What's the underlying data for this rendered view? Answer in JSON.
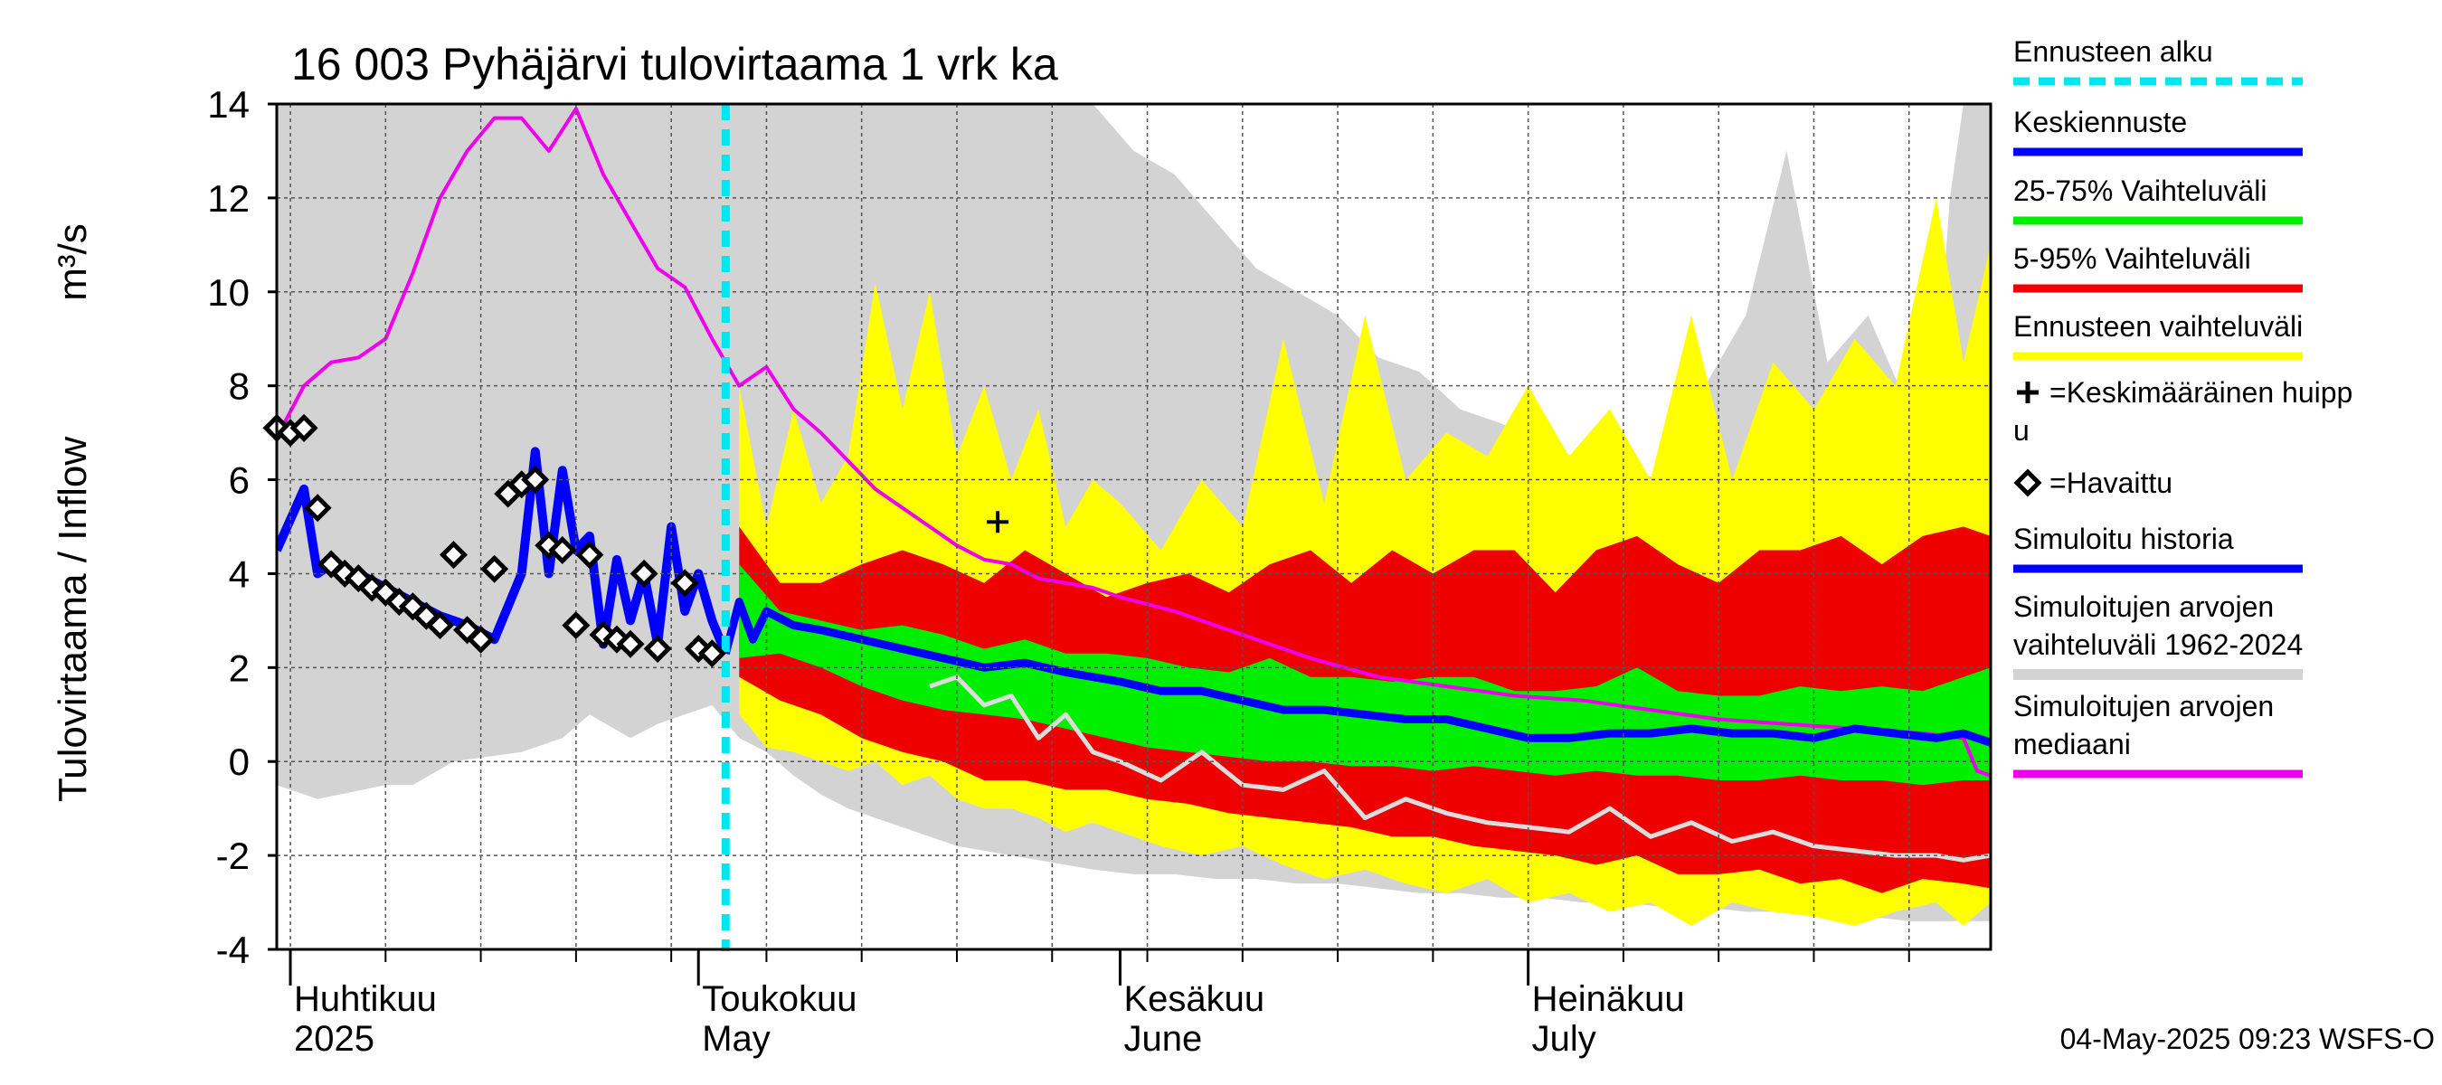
{
  "chart_data": {
    "type": "area",
    "title": "16 003 Pyhäjärvi tulovirtaama 1 vrk ka",
    "ylabel": "Tulovirtaama / Inflow",
    "yunit": "m³/s",
    "ylim": [
      -4,
      14
    ],
    "yticks": [
      -4,
      -2,
      0,
      2,
      4,
      6,
      8,
      10,
      12,
      14
    ],
    "xlim": [
      "2025-03-31",
      "2025-08-04"
    ],
    "grid": true,
    "legend_position": "right",
    "footer": "04-May-2025 09:23 WSFS-O",
    "month_labels": [
      {
        "fi": "Huhtikuu",
        "en": "2025",
        "date": "2025-04-01"
      },
      {
        "fi": "Toukokuu",
        "en": "May",
        "date": "2025-05-01"
      },
      {
        "fi": "Kesäkuu",
        "en": "June",
        "date": "2025-06-01"
      },
      {
        "fi": "Heinäkuu",
        "en": "July",
        "date": "2025-07-01"
      }
    ],
    "forecast_start": "2025-05-03",
    "legend": [
      {
        "label": "Ennusteen alku",
        "color": "#00e5ee",
        "style": "dashed"
      },
      {
        "label": "Keskiennuste",
        "color": "#0000ff",
        "style": "line"
      },
      {
        "label": "25-75% Vaihteluväli",
        "color": "#00ee00",
        "style": "line"
      },
      {
        "label": "5-95% Vaihteluväli",
        "color": "#ee0000",
        "style": "line"
      },
      {
        "label": "Ennusteen vaihteluväli",
        "color": "#ffff00",
        "style": "line"
      },
      {
        "label": "=Keskimääräinen huipp\nu",
        "color": "#000000",
        "style": "plus"
      },
      {
        "label": "=Havaittu",
        "color": "#000000",
        "style": "diamond"
      },
      {
        "label": "Simuloitu historia",
        "color": "#0000ff",
        "style": "line"
      },
      {
        "label": "Simuloitujen arvojen\nvaihteluväli 1962-2024",
        "color": "#d3d3d3",
        "style": "line"
      },
      {
        "label": "Simuloitujen arvojen\nmediaani",
        "color": "#ee00ee",
        "style": "line"
      }
    ],
    "colors": {
      "history_range": "#d3d3d3",
      "forecast_range": "#ffff00",
      "p5_95": "#ee0000",
      "p25_75": "#00ee00",
      "mean_forecast": "#0000ff",
      "simulated_history": "#0000ff",
      "historical_median": "#ee00ee",
      "forecast_start": "#00e5ee",
      "low_sim": "#dddddd"
    },
    "series": {
      "history_range": {
        "x": [
          "2025-03-31",
          "2025-04-03",
          "2025-04-08",
          "2025-04-10",
          "2025-04-13",
          "2025-04-18",
          "2025-04-21",
          "2025-04-23",
          "2025-04-26",
          "2025-04-28",
          "2025-04-30",
          "2025-05-02",
          "2025-05-04",
          "2025-05-06",
          "2025-05-08",
          "2025-05-10",
          "2025-05-12",
          "2025-05-14",
          "2025-05-16",
          "2025-05-18",
          "2025-05-20",
          "2025-05-22",
          "2025-05-24",
          "2025-05-26",
          "2025-05-28",
          "2025-05-30",
          "2025-06-02",
          "2025-06-05",
          "2025-06-08",
          "2025-06-11",
          "2025-06-14",
          "2025-06-17",
          "2025-06-20",
          "2025-06-23",
          "2025-06-26",
          "2025-06-29",
          "2025-07-02",
          "2025-07-05",
          "2025-07-08",
          "2025-07-11",
          "2025-07-14",
          "2025-07-17",
          "2025-07-20",
          "2025-07-23",
          "2025-07-26",
          "2025-07-29",
          "2025-07-31",
          "2025-08-01",
          "2025-08-02",
          "2025-08-03",
          "2025-08-04"
        ],
        "upper": [
          14,
          14,
          14,
          14,
          14,
          14,
          14,
          14,
          14,
          14,
          14,
          14,
          14,
          14,
          14,
          14,
          14,
          14,
          14,
          14,
          14,
          14,
          14,
          14,
          14,
          14,
          13,
          12.5,
          11.5,
          10.5,
          10,
          9.5,
          8.6,
          8.3,
          7.5,
          7.2,
          6.8,
          6.4,
          6.2,
          6.0,
          8.0,
          9.5,
          13.0,
          8.5,
          9.5,
          7.5,
          8.0,
          12.0,
          14.0,
          14.0,
          14.0
        ],
        "lower": [
          -0.5,
          -0.8,
          -0.5,
          -0.5,
          0.0,
          0.2,
          0.5,
          1.0,
          0.5,
          0.8,
          1.0,
          1.2,
          0.5,
          0.2,
          -0.3,
          -0.7,
          -1.0,
          -1.2,
          -1.4,
          -1.6,
          -1.8,
          -1.9,
          -2.0,
          -2.1,
          -2.2,
          -2.3,
          -2.4,
          -2.4,
          -2.5,
          -2.5,
          -2.6,
          -2.6,
          -2.7,
          -2.8,
          -2.8,
          -2.9,
          -2.9,
          -3.0,
          -3.0,
          -3.1,
          -3.1,
          -3.2,
          -3.2,
          -3.3,
          -3.3,
          -3.4,
          -3.4,
          -3.4,
          -3.4,
          -3.4,
          -3.4
        ]
      },
      "forecast_range": {
        "x": [
          "2025-05-04",
          "2025-05-06",
          "2025-05-08",
          "2025-05-10",
          "2025-05-12",
          "2025-05-14",
          "2025-05-16",
          "2025-05-18",
          "2025-05-20",
          "2025-05-22",
          "2025-05-24",
          "2025-05-26",
          "2025-05-28",
          "2025-05-30",
          "2025-06-01",
          "2025-06-04",
          "2025-06-07",
          "2025-06-10",
          "2025-06-13",
          "2025-06-16",
          "2025-06-19",
          "2025-06-22",
          "2025-06-25",
          "2025-06-28",
          "2025-07-01",
          "2025-07-04",
          "2025-07-07",
          "2025-07-10",
          "2025-07-13",
          "2025-07-16",
          "2025-07-19",
          "2025-07-22",
          "2025-07-25",
          "2025-07-28",
          "2025-07-31",
          "2025-08-02",
          "2025-08-04"
        ],
        "upper": [
          8.0,
          5.0,
          7.5,
          5.5,
          6.5,
          10.2,
          7.5,
          10.0,
          6.5,
          8.0,
          6.0,
          7.5,
          5.0,
          6.0,
          5.5,
          4.5,
          6.0,
          5.0,
          9.0,
          5.5,
          9.5,
          6.0,
          7.0,
          6.5,
          8.0,
          6.5,
          7.5,
          6.0,
          9.5,
          6.0,
          8.5,
          7.5,
          9.0,
          8.0,
          12.0,
          8.5,
          11.0
        ],
        "lower": [
          1.0,
          0.3,
          0.2,
          0.0,
          -0.2,
          0.0,
          -0.5,
          -0.3,
          -0.8,
          -1.0,
          -1.0,
          -1.2,
          -1.5,
          -1.3,
          -1.5,
          -1.8,
          -2.0,
          -1.8,
          -2.2,
          -2.5,
          -2.3,
          -2.6,
          -2.8,
          -2.5,
          -3.0,
          -2.8,
          -3.2,
          -3.0,
          -3.5,
          -3.0,
          -3.2,
          -3.3,
          -3.5,
          -3.2,
          -3.0,
          -3.5,
          -3.0
        ]
      },
      "p5_95": {
        "x": [
          "2025-05-04",
          "2025-05-07",
          "2025-05-10",
          "2025-05-13",
          "2025-05-16",
          "2025-05-19",
          "2025-05-22",
          "2025-05-25",
          "2025-05-28",
          "2025-05-31",
          "2025-06-03",
          "2025-06-06",
          "2025-06-09",
          "2025-06-12",
          "2025-06-15",
          "2025-06-18",
          "2025-06-21",
          "2025-06-24",
          "2025-06-27",
          "2025-06-30",
          "2025-07-03",
          "2025-07-06",
          "2025-07-09",
          "2025-07-12",
          "2025-07-15",
          "2025-07-18",
          "2025-07-21",
          "2025-07-24",
          "2025-07-27",
          "2025-07-30",
          "2025-08-02",
          "2025-08-04"
        ],
        "upper": [
          5.0,
          3.8,
          3.8,
          4.2,
          4.5,
          4.2,
          3.8,
          4.5,
          4.0,
          3.5,
          3.8,
          4.0,
          3.6,
          4.2,
          4.5,
          3.8,
          4.5,
          4.0,
          4.5,
          4.5,
          3.6,
          4.5,
          4.8,
          4.2,
          3.8,
          4.5,
          4.5,
          4.8,
          4.2,
          4.8,
          5.0,
          4.8
        ],
        "lower": [
          1.8,
          1.3,
          1.0,
          0.5,
          0.2,
          0.0,
          -0.4,
          -0.4,
          -0.6,
          -0.6,
          -0.8,
          -0.9,
          -1.1,
          -1.2,
          -1.3,
          -1.4,
          -1.6,
          -1.6,
          -1.8,
          -1.9,
          -2.0,
          -2.2,
          -2.0,
          -2.4,
          -2.4,
          -2.3,
          -2.6,
          -2.5,
          -2.8,
          -2.5,
          -2.6,
          -2.7
        ]
      },
      "p25_75": {
        "x": [
          "2025-05-04",
          "2025-05-07",
          "2025-05-10",
          "2025-05-13",
          "2025-05-16",
          "2025-05-19",
          "2025-05-22",
          "2025-05-25",
          "2025-05-28",
          "2025-05-31",
          "2025-06-03",
          "2025-06-06",
          "2025-06-09",
          "2025-06-12",
          "2025-06-15",
          "2025-06-18",
          "2025-06-21",
          "2025-06-24",
          "2025-06-27",
          "2025-06-30",
          "2025-07-03",
          "2025-07-06",
          "2025-07-09",
          "2025-07-12",
          "2025-07-15",
          "2025-07-18",
          "2025-07-21",
          "2025-07-24",
          "2025-07-27",
          "2025-07-30",
          "2025-08-02",
          "2025-08-04"
        ],
        "upper": [
          4.2,
          3.2,
          3.0,
          2.8,
          2.9,
          2.7,
          2.4,
          2.6,
          2.3,
          2.3,
          2.2,
          2.0,
          1.9,
          2.2,
          1.8,
          1.8,
          1.7,
          1.8,
          1.8,
          1.5,
          1.5,
          1.6,
          2.0,
          1.5,
          1.4,
          1.4,
          1.6,
          1.5,
          1.6,
          1.5,
          1.8,
          2.0
        ],
        "lower": [
          2.2,
          2.3,
          2.0,
          1.6,
          1.3,
          1.1,
          1.0,
          0.9,
          0.7,
          0.5,
          0.3,
          0.2,
          0.1,
          0.0,
          0.0,
          -0.1,
          -0.1,
          -0.2,
          -0.1,
          -0.2,
          -0.3,
          -0.2,
          -0.3,
          -0.3,
          -0.4,
          -0.4,
          -0.3,
          -0.4,
          -0.4,
          -0.5,
          -0.4,
          -0.4
        ]
      },
      "historical_median": {
        "x": [
          "2025-03-31",
          "2025-04-02",
          "2025-04-04",
          "2025-04-06",
          "2025-04-08",
          "2025-04-10",
          "2025-04-12",
          "2025-04-14",
          "2025-04-16",
          "2025-04-18",
          "2025-04-20",
          "2025-04-22",
          "2025-04-24",
          "2025-04-26",
          "2025-04-28",
          "2025-04-30",
          "2025-05-02",
          "2025-05-04",
          "2025-05-06",
          "2025-05-08",
          "2025-05-10",
          "2025-05-12",
          "2025-05-14",
          "2025-05-16",
          "2025-05-18",
          "2025-05-20",
          "2025-05-22",
          "2025-05-24",
          "2025-05-26",
          "2025-05-28",
          "2025-05-30",
          "2025-06-01",
          "2025-06-05",
          "2025-06-10",
          "2025-06-15",
          "2025-06-20",
          "2025-06-25",
          "2025-06-30",
          "2025-07-05",
          "2025-07-10",
          "2025-07-15",
          "2025-07-20",
          "2025-07-25",
          "2025-07-30",
          "2025-08-02",
          "2025-08-03",
          "2025-08-04"
        ],
        "values": [
          6.9,
          8.0,
          8.5,
          8.6,
          9.0,
          10.4,
          12.0,
          13.0,
          13.7,
          13.7,
          13.0,
          13.9,
          12.5,
          11.5,
          10.5,
          10.1,
          9.0,
          8.0,
          8.4,
          7.5,
          7.0,
          6.4,
          5.8,
          5.4,
          5.0,
          4.6,
          4.3,
          4.2,
          3.9,
          3.8,
          3.7,
          3.5,
          3.2,
          2.7,
          2.2,
          1.8,
          1.6,
          1.4,
          1.3,
          1.1,
          0.9,
          0.8,
          0.7,
          0.6,
          0.5,
          -0.2,
          -0.3
        ]
      },
      "simulated_history": {
        "x": [
          "2025-03-31",
          "2025-04-02",
          "2025-04-03",
          "2025-04-04",
          "2025-04-05",
          "2025-04-06",
          "2025-04-08",
          "2025-04-10",
          "2025-04-12",
          "2025-04-14",
          "2025-04-16",
          "2025-04-18",
          "2025-04-19",
          "2025-04-20",
          "2025-04-21",
          "2025-04-22",
          "2025-04-23",
          "2025-04-24",
          "2025-04-25",
          "2025-04-26",
          "2025-04-27",
          "2025-04-28",
          "2025-04-29",
          "2025-04-30",
          "2025-05-01",
          "2025-05-02",
          "2025-05-03"
        ],
        "values": [
          4.5,
          5.8,
          4.0,
          4.2,
          3.9,
          4.0,
          3.7,
          3.4,
          3.1,
          2.9,
          2.6,
          4.0,
          6.6,
          4.0,
          6.2,
          4.5,
          4.8,
          2.5,
          4.3,
          3.0,
          4.0,
          2.5,
          5.0,
          3.2,
          4.0,
          3.0,
          2.3
        ]
      },
      "mean_forecast": {
        "x": [
          "2025-05-03",
          "2025-05-04",
          "2025-05-05",
          "2025-05-06",
          "2025-05-08",
          "2025-05-10",
          "2025-05-13",
          "2025-05-16",
          "2025-05-19",
          "2025-05-22",
          "2025-05-25",
          "2025-05-28",
          "2025-06-01",
          "2025-06-04",
          "2025-06-07",
          "2025-06-10",
          "2025-06-13",
          "2025-06-16",
          "2025-06-19",
          "2025-06-22",
          "2025-06-25",
          "2025-06-28",
          "2025-07-01",
          "2025-07-04",
          "2025-07-07",
          "2025-07-10",
          "2025-07-13",
          "2025-07-16",
          "2025-07-19",
          "2025-07-22",
          "2025-07-25",
          "2025-07-28",
          "2025-07-31",
          "2025-08-02",
          "2025-08-04"
        ],
        "values": [
          2.3,
          3.4,
          2.6,
          3.2,
          2.9,
          2.8,
          2.6,
          2.4,
          2.2,
          2.0,
          2.1,
          1.9,
          1.7,
          1.5,
          1.5,
          1.3,
          1.1,
          1.1,
          1.0,
          0.9,
          0.9,
          0.7,
          0.5,
          0.5,
          0.6,
          0.6,
          0.7,
          0.6,
          0.6,
          0.5,
          0.7,
          0.6,
          0.5,
          0.6,
          0.4
        ]
      },
      "low_sim": {
        "x": [
          "2025-05-18",
          "2025-05-20",
          "2025-05-22",
          "2025-05-24",
          "2025-05-26",
          "2025-05-28",
          "2025-05-30",
          "2025-06-01",
          "2025-06-04",
          "2025-06-07",
          "2025-06-10",
          "2025-06-13",
          "2025-06-16",
          "2025-06-19",
          "2025-06-22",
          "2025-06-25",
          "2025-06-28",
          "2025-07-01",
          "2025-07-04",
          "2025-07-07",
          "2025-07-10",
          "2025-07-13",
          "2025-07-16",
          "2025-07-19",
          "2025-07-22",
          "2025-07-25",
          "2025-07-28",
          "2025-07-31",
          "2025-08-02",
          "2025-08-04"
        ],
        "values": [
          1.6,
          1.8,
          1.2,
          1.4,
          0.5,
          1.0,
          0.2,
          0.0,
          -0.4,
          0.2,
          -0.5,
          -0.6,
          -0.2,
          -1.2,
          -0.8,
          -1.1,
          -1.3,
          -1.4,
          -1.5,
          -1.0,
          -1.6,
          -1.3,
          -1.7,
          -1.5,
          -1.8,
          -1.9,
          -2.0,
          -2.0,
          -2.1,
          -2.0
        ]
      }
    },
    "observed": {
      "x": [
        "2025-03-31",
        "2025-04-01",
        "2025-04-02",
        "2025-04-03",
        "2025-04-04",
        "2025-04-05",
        "2025-04-06",
        "2025-04-07",
        "2025-04-08",
        "2025-04-09",
        "2025-04-10",
        "2025-04-11",
        "2025-04-12",
        "2025-04-13",
        "2025-04-14",
        "2025-04-15",
        "2025-04-16",
        "2025-04-17",
        "2025-04-18",
        "2025-04-19",
        "2025-04-20",
        "2025-04-21",
        "2025-04-22",
        "2025-04-23",
        "2025-04-24",
        "2025-04-25",
        "2025-04-26",
        "2025-04-27",
        "2025-04-28",
        "2025-04-30",
        "2025-05-01",
        "2025-05-02"
      ],
      "values": [
        7.1,
        7.0,
        7.1,
        5.4,
        4.2,
        4.0,
        3.9,
        3.7,
        3.6,
        3.4,
        3.3,
        3.1,
        2.9,
        4.4,
        2.8,
        2.6,
        4.1,
        5.7,
        5.9,
        6.0,
        4.6,
        4.5,
        2.9,
        4.4,
        2.7,
        2.6,
        2.5,
        4.0,
        2.4,
        3.8,
        2.4,
        2.3
      ]
    },
    "avg_peak": {
      "x": "2025-05-23",
      "y": 5.1
    }
  }
}
